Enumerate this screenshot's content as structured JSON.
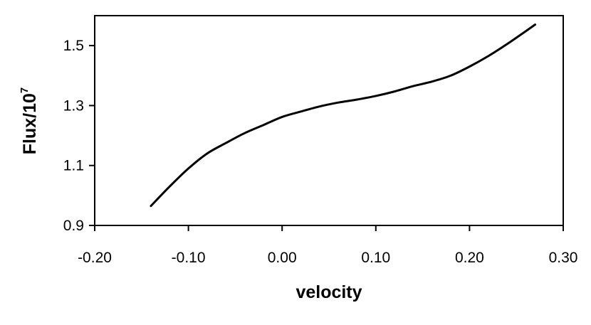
{
  "chart_data": {
    "type": "line",
    "title": "",
    "xlabel": "velocity",
    "ylabel": {
      "base": "Flux/10",
      "superscript": "7"
    },
    "xlim": [
      -0.2,
      0.3
    ],
    "ylim": [
      0.9,
      1.6
    ],
    "xticks": [
      "-0.20",
      "-0.10",
      "0.00",
      "0.10",
      "0.20",
      "0.30"
    ],
    "yticks": [
      "0.9",
      "1.1",
      "1.3",
      "1.5"
    ],
    "grid": false,
    "legend": "none",
    "line_color": "#000000",
    "series": [
      {
        "x": [
          -0.14,
          -0.12,
          -0.1,
          -0.08,
          -0.06,
          -0.04,
          -0.02,
          0.0,
          0.02,
          0.04,
          0.06,
          0.08,
          0.1,
          0.12,
          0.14,
          0.16,
          0.18,
          0.2,
          0.22,
          0.24,
          0.27
        ],
        "y": [
          0.965,
          1.03,
          1.09,
          1.14,
          1.175,
          1.208,
          1.235,
          1.262,
          1.28,
          1.297,
          1.31,
          1.32,
          1.332,
          1.347,
          1.365,
          1.38,
          1.4,
          1.43,
          1.465,
          1.505,
          1.57
        ]
      }
    ]
  }
}
